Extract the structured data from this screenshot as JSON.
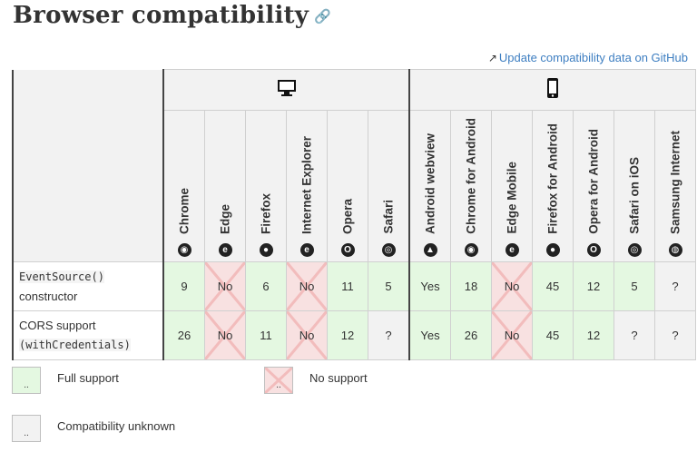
{
  "heading": "Browser compatibility",
  "github_link": "Update compatibility data on GitHub",
  "platforms": [
    "desktop",
    "mobile"
  ],
  "browsers": [
    {
      "name": "Chrome",
      "icon": "chrome-icon",
      "glyph": "◉"
    },
    {
      "name": "Edge",
      "icon": "edge-icon",
      "glyph": "e"
    },
    {
      "name": "Firefox",
      "icon": "firefox-icon",
      "glyph": "●"
    },
    {
      "name": "Internet Explorer",
      "icon": "ie-icon",
      "glyph": "e"
    },
    {
      "name": "Opera",
      "icon": "opera-icon",
      "glyph": "O"
    },
    {
      "name": "Safari",
      "icon": "safari-icon",
      "glyph": "◎"
    },
    {
      "name": "Android webview",
      "icon": "android-icon",
      "glyph": "▲"
    },
    {
      "name": "Chrome for Android",
      "icon": "chrome-icon",
      "glyph": "◉"
    },
    {
      "name": "Edge Mobile",
      "icon": "edge-icon",
      "glyph": "e"
    },
    {
      "name": "Firefox for Android",
      "icon": "firefox-icon",
      "glyph": "●"
    },
    {
      "name": "Opera for Android",
      "icon": "opera-icon",
      "glyph": "O"
    },
    {
      "name": "Safari on iOS",
      "icon": "safari-icon",
      "glyph": "◎"
    },
    {
      "name": "Samsung Internet",
      "icon": "samsung-icon",
      "glyph": "◍"
    }
  ],
  "rows": [
    {
      "feature_code": "EventSource()",
      "feature_text": "constructor",
      "cells": [
        [
          "9",
          "yes"
        ],
        [
          "No",
          "no"
        ],
        [
          "6",
          "yes"
        ],
        [
          "No",
          "no"
        ],
        [
          "11",
          "yes"
        ],
        [
          "5",
          "yes"
        ],
        [
          "Yes",
          "yes"
        ],
        [
          "18",
          "yes"
        ],
        [
          "No",
          "no"
        ],
        [
          "45",
          "yes"
        ],
        [
          "12",
          "yes"
        ],
        [
          "5",
          "yes"
        ],
        [
          "?",
          "unk"
        ]
      ]
    },
    {
      "feature_text": "CORS support",
      "feature_code": "(withCredentials)",
      "cells": [
        [
          "26",
          "yes"
        ],
        [
          "No",
          "no"
        ],
        [
          "11",
          "yes"
        ],
        [
          "No",
          "no"
        ],
        [
          "12",
          "yes"
        ],
        [
          "?",
          "unk"
        ],
        [
          "Yes",
          "yes"
        ],
        [
          "26",
          "yes"
        ],
        [
          "No",
          "no"
        ],
        [
          "45",
          "yes"
        ],
        [
          "12",
          "yes"
        ],
        [
          "?",
          "unk"
        ],
        [
          "?",
          "unk"
        ]
      ]
    }
  ],
  "legend": {
    "full": "Full support",
    "no": "No support",
    "unknown": "Compatibility unknown",
    "box_text": ".."
  },
  "colors": {
    "yes": "#e4f8e1",
    "no": "#f8e1e1",
    "unk": "#f2f2f2",
    "link": "#3d7ec1"
  }
}
